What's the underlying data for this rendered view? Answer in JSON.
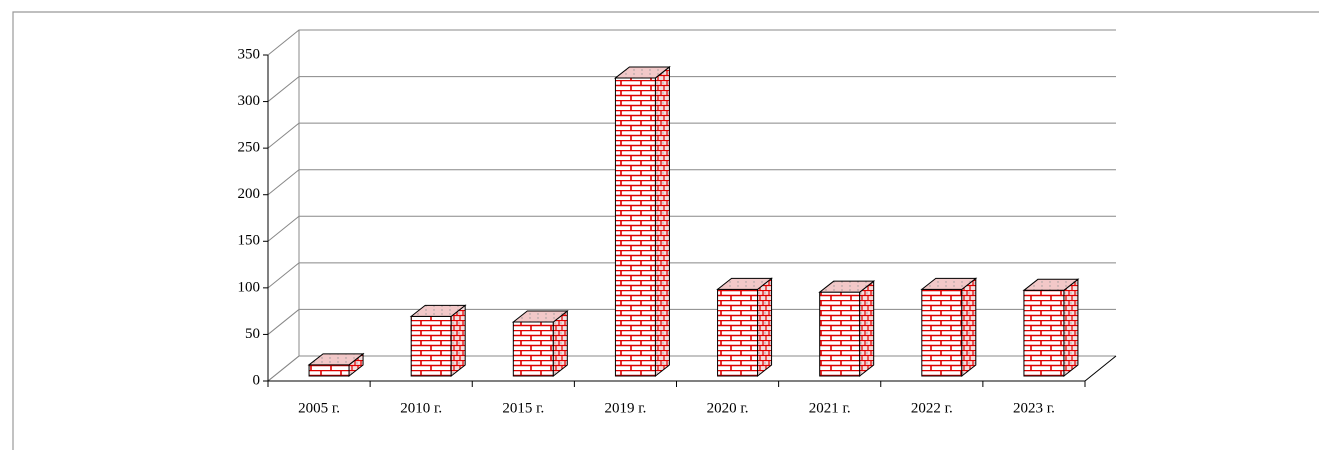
{
  "chart_data": {
    "type": "bar3d",
    "categories": [
      "2005 г.",
      "2010 г.",
      "2015 г.",
      "2019 г.",
      "2020 г.",
      "2021 г.",
      "2022 г.",
      "2023 г."
    ],
    "values": [
      12,
      64,
      58,
      320,
      93,
      90,
      93,
      92
    ],
    "color": "#e00000",
    "ylim": [
      0,
      350
    ],
    "yticks": [
      0,
      50,
      100,
      150,
      200,
      250,
      300,
      350
    ],
    "grid": true
  }
}
